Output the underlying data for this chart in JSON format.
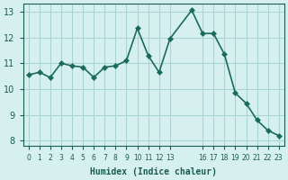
{
  "x_vals": [
    0,
    1,
    2,
    3,
    4,
    5,
    6,
    7,
    8,
    9,
    10,
    11,
    12,
    13,
    15,
    16,
    17,
    18,
    19,
    20,
    21,
    22,
    23
  ],
  "y_vals": [
    10.55,
    10.65,
    10.45,
    11.0,
    10.9,
    10.85,
    10.45,
    10.85,
    10.9,
    11.1,
    12.35,
    11.3,
    10.65,
    11.95,
    13.05,
    12.15,
    12.15,
    11.35,
    9.85,
    9.45,
    8.8,
    8.4,
    8.2
  ],
  "ylim": [
    7.8,
    13.3
  ],
  "xlim": [
    -0.5,
    23.5
  ],
  "yticks": [
    8,
    9,
    10,
    11,
    12,
    13
  ],
  "xtick_positions": [
    0,
    1,
    2,
    3,
    4,
    5,
    6,
    7,
    8,
    9,
    10,
    11,
    12,
    13,
    16,
    17,
    18,
    19,
    20,
    21,
    22,
    23
  ],
  "xtick_labels": [
    "0",
    "1",
    "2",
    "3",
    "4",
    "5",
    "6",
    "7",
    "8",
    "9",
    "10",
    "11",
    "12",
    "13",
    "16",
    "17",
    "18",
    "19",
    "20",
    "21",
    "22",
    "23"
  ],
  "xlabel": "Humidex (Indice chaleur)",
  "line_color": "#1a6b5e",
  "bg_color": "#d6f0f0",
  "grid_color": "#aad4d4",
  "tick_color": "#1a5c50",
  "marker_size": 3.0,
  "line_width": 1.2
}
